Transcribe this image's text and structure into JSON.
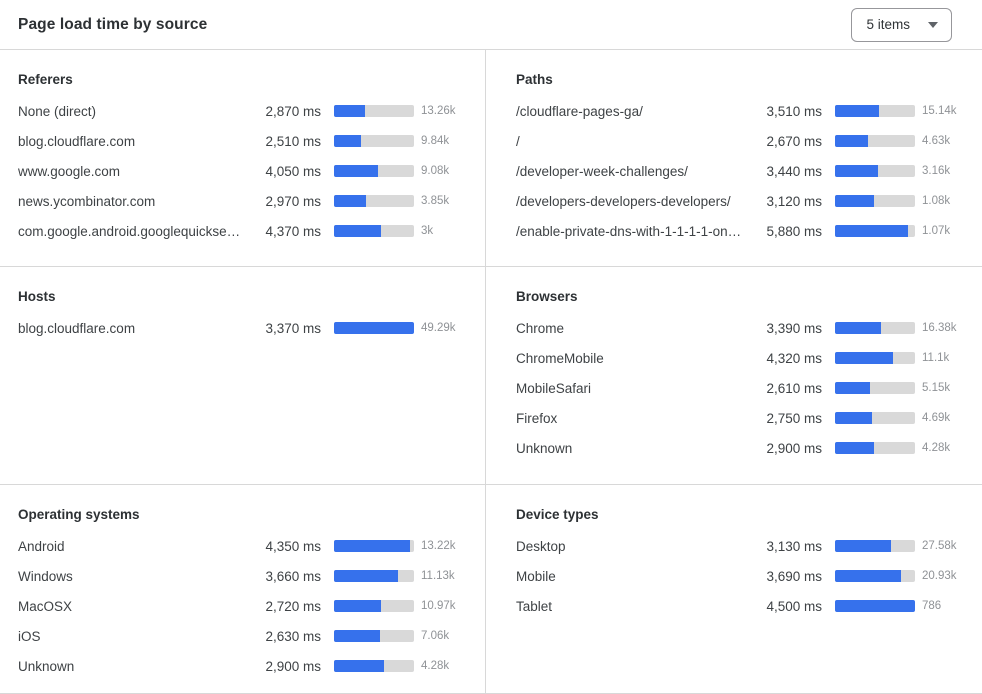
{
  "header": {
    "title": "Page load time by source",
    "items_dropdown": {
      "value": "5 items"
    }
  },
  "colors": {
    "bar_fill": "#3671ec",
    "bar_track": "#d9d9d9",
    "divider": "#d8d8d8",
    "count_text": "#8f9296",
    "label_text": "#3e4245",
    "heading_text": "#2d3134"
  },
  "chart_data": [
    {
      "type": "bar",
      "orientation": "horizontal",
      "title": "Referers",
      "unit": "ms",
      "categories": [
        "None (direct)",
        "blog.cloudflare.com",
        "www.google.com",
        "news.ycombinator.com",
        "com.google.android.googlequicksearc..."
      ],
      "values": [
        2870,
        2510,
        4050,
        2970,
        4370
      ],
      "value_labels": [
        "2,870 ms",
        "2,510 ms",
        "4,050 ms",
        "2,970 ms",
        "4,370 ms"
      ],
      "counts": [
        "13.26k",
        "9.84k",
        "9.08k",
        "3.85k",
        "3k"
      ],
      "bar_pct": [
        38.6,
        33.8,
        54.5,
        40.0,
        58.8
      ]
    },
    {
      "type": "bar",
      "orientation": "horizontal",
      "title": "Paths",
      "unit": "ms",
      "categories": [
        "/cloudflare-pages-ga/",
        "/",
        "/developer-week-challenges/",
        "/developers-developers-developers/",
        "/enable-private-dns-with-1-1-1-1-on-..."
      ],
      "values": [
        3510,
        2670,
        3440,
        3120,
        5880
      ],
      "value_labels": [
        "3,510 ms",
        "2,670 ms",
        "3,440 ms",
        "3,120 ms",
        "5,880 ms"
      ],
      "counts": [
        "15.14k",
        "4.63k",
        "3.16k",
        "1.08k",
        "1.07k"
      ],
      "bar_pct": [
        54.7,
        41.6,
        53.6,
        48.6,
        91.6
      ]
    },
    {
      "type": "bar",
      "orientation": "horizontal",
      "title": "Hosts",
      "unit": "ms",
      "categories": [
        "blog.cloudflare.com"
      ],
      "values": [
        3370
      ],
      "value_labels": [
        "3,370 ms"
      ],
      "counts": [
        "49.29k"
      ],
      "bar_pct": [
        100
      ]
    },
    {
      "type": "bar",
      "orientation": "horizontal",
      "title": "Browsers",
      "unit": "ms",
      "categories": [
        "Chrome",
        "ChromeMobile",
        "MobileSafari",
        "Firefox",
        "Unknown"
      ],
      "values": [
        3390,
        4320,
        2610,
        2750,
        2900
      ],
      "value_labels": [
        "3,390 ms",
        "4,320 ms",
        "2,610 ms",
        "2,750 ms",
        "2,900 ms"
      ],
      "counts": [
        "16.38k",
        "11.1k",
        "5.15k",
        "4.69k",
        "4.28k"
      ],
      "bar_pct": [
        57.2,
        72.9,
        44.0,
        46.4,
        48.9
      ]
    },
    {
      "type": "bar",
      "orientation": "horizontal",
      "title": "Operating systems",
      "unit": "ms",
      "categories": [
        "Android",
        "Windows",
        "MacOSX",
        "iOS",
        "Unknown"
      ],
      "values": [
        4350,
        3660,
        2720,
        2630,
        2900
      ],
      "value_labels": [
        "4,350 ms",
        "3,660 ms",
        "2,720 ms",
        "2,630 ms",
        "2,900 ms"
      ],
      "counts": [
        "13.22k",
        "11.13k",
        "10.97k",
        "7.06k",
        "4.28k"
      ],
      "bar_pct": [
        94.6,
        79.6,
        59.1,
        57.2,
        63.0
      ]
    },
    {
      "type": "bar",
      "orientation": "horizontal",
      "title": "Device types",
      "unit": "ms",
      "categories": [
        "Desktop",
        "Mobile",
        "Tablet"
      ],
      "values": [
        3130,
        3690,
        4500
      ],
      "value_labels": [
        "3,130 ms",
        "3,690 ms",
        "4,500 ms"
      ],
      "counts": [
        "27.58k",
        "20.93k",
        "786"
      ],
      "bar_pct": [
        69.6,
        82.0,
        100
      ]
    }
  ]
}
